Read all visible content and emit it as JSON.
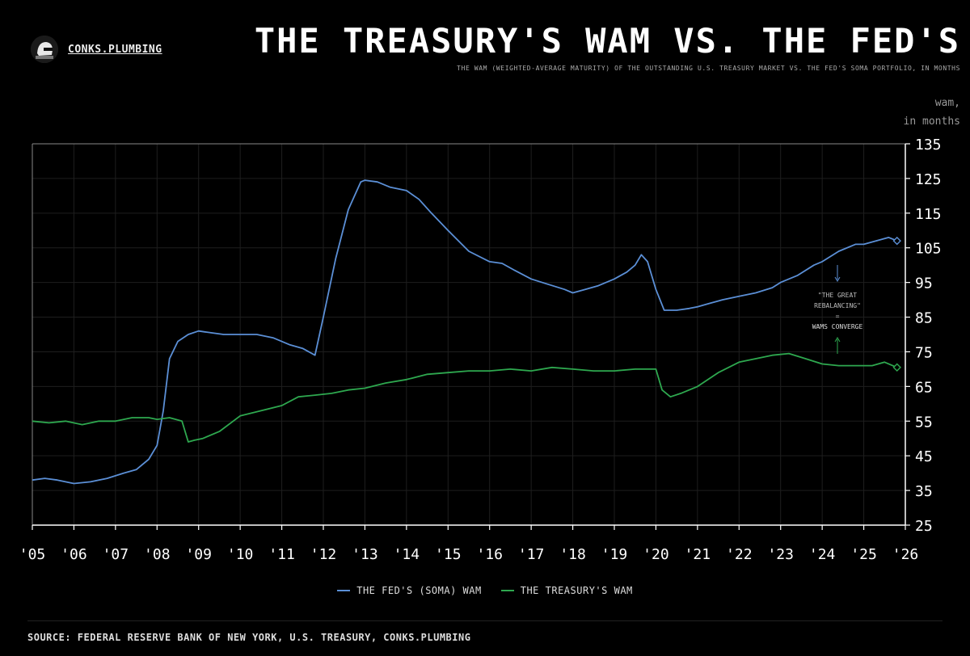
{
  "brand": {
    "name": "CONKS.PLUMBING"
  },
  "header": {
    "title": "THE TREASURY'S WAM VS. THE FED'S",
    "subtitle": "THE WAM (WEIGHTED-AVERAGE MATURITY) OF THE OUTSTANDING U.S. TREASURY MARKET VS. THE FED'S SOMA PORTFOLIO, IN MONTHS",
    "unit_line1": "wam,",
    "unit_line2": "in months"
  },
  "annotation": {
    "line1": "\"THE GREAT",
    "line2": "REBALANCING\"",
    "line3": "=",
    "line4": "WAMS CONVERGE"
  },
  "footer": {
    "source": "SOURCE: FEDERAL RESERVE BANK OF NEW YORK, U.S. TREASURY, CONKS.PLUMBING"
  },
  "colors": {
    "fed": "#5b8fd6",
    "treasury": "#2ea84f",
    "axis": "#ffffff",
    "grid": "#1e1e1e"
  },
  "chart_data": {
    "type": "line",
    "title": "THE TREASURY'S WAM VS. THE FED'S",
    "ylabel": "wam, in months",
    "xlim": [
      2005,
      2026
    ],
    "ylim": [
      25,
      135
    ],
    "yticks": [
      25,
      35,
      45,
      55,
      65,
      75,
      85,
      95,
      105,
      115,
      125,
      135
    ],
    "xticks": [
      2005,
      2006,
      2007,
      2008,
      2009,
      2010,
      2011,
      2012,
      2013,
      2014,
      2015,
      2016,
      2017,
      2018,
      2019,
      2020,
      2021,
      2022,
      2023,
      2024,
      2025,
      2026
    ],
    "xtick_labels": [
      "'05",
      "'06",
      "'07",
      "'08",
      "'09",
      "'10",
      "'11",
      "'12",
      "'13",
      "'14",
      "'15",
      "'16",
      "'17",
      "'18",
      "'19",
      "'20",
      "'21",
      "'22",
      "'23",
      "'24",
      "'25",
      "'26"
    ],
    "grid": true,
    "legend_position": "bottom-center",
    "series": [
      {
        "name": "THE FED'S (SOMA) WAM",
        "x": [
          2005.0,
          2005.3,
          2005.6,
          2006.0,
          2006.4,
          2006.8,
          2007.2,
          2007.5,
          2007.8,
          2008.0,
          2008.15,
          2008.3,
          2008.5,
          2008.75,
          2009.0,
          2009.3,
          2009.6,
          2010.0,
          2010.4,
          2010.8,
          2011.2,
          2011.5,
          2011.8,
          2012.0,
          2012.3,
          2012.6,
          2012.9,
          2013.0,
          2013.3,
          2013.6,
          2014.0,
          2014.3,
          2014.6,
          2015.0,
          2015.5,
          2016.0,
          2016.3,
          2016.6,
          2017.0,
          2017.4,
          2017.8,
          2018.0,
          2018.3,
          2018.6,
          2019.0,
          2019.3,
          2019.5,
          2019.65,
          2019.8,
          2020.0,
          2020.2,
          2020.5,
          2020.8,
          2021.0,
          2021.3,
          2021.6,
          2022.0,
          2022.4,
          2022.8,
          2023.0,
          2023.4,
          2023.8,
          2024.0,
          2024.4,
          2024.8,
          2025.0,
          2025.3,
          2025.6,
          2025.8
        ],
        "values": [
          38,
          38.5,
          38,
          37,
          37.5,
          38.5,
          40,
          41,
          44,
          48,
          58,
          73,
          78,
          80,
          81,
          80.5,
          80,
          80,
          80,
          79,
          77,
          76,
          74,
          85,
          102,
          116,
          124,
          124.5,
          124,
          122.5,
          121.5,
          119,
          115,
          110,
          104,
          101,
          100.5,
          98.5,
          96,
          94.5,
          93,
          92,
          93,
          94,
          96,
          98,
          100,
          103,
          101,
          93,
          87,
          87,
          87.5,
          88,
          89,
          90,
          91,
          92,
          93.5,
          95,
          97,
          100,
          101,
          104,
          106,
          106,
          107,
          108,
          107
        ]
      },
      {
        "name": "THE TREASURY'S WAM",
        "x": [
          2005.0,
          2005.4,
          2005.8,
          2006.2,
          2006.6,
          2007.0,
          2007.4,
          2007.8,
          2008.0,
          2008.3,
          2008.6,
          2008.75,
          2008.9,
          2009.1,
          2009.5,
          2010.0,
          2010.5,
          2011.0,
          2011.4,
          2011.8,
          2012.2,
          2012.6,
          2013.0,
          2013.5,
          2014.0,
          2014.5,
          2015.0,
          2015.5,
          2016.0,
          2016.5,
          2017.0,
          2017.5,
          2018.0,
          2018.5,
          2019.0,
          2019.5,
          2020.0,
          2020.15,
          2020.35,
          2020.6,
          2021.0,
          2021.5,
          2022.0,
          2022.4,
          2022.8,
          2023.2,
          2023.6,
          2024.0,
          2024.4,
          2024.8,
          2025.2,
          2025.5,
          2025.8
        ],
        "values": [
          55,
          54.5,
          55,
          54,
          55,
          55,
          56,
          56,
          55.5,
          56,
          55,
          49,
          49.5,
          50,
          52,
          56.5,
          58,
          59.5,
          62,
          62.5,
          63,
          64,
          64.5,
          66,
          67,
          68.5,
          69,
          69.5,
          69.5,
          70,
          69.5,
          70.5,
          70,
          69.5,
          69.5,
          70,
          70,
          64,
          62,
          63,
          65,
          69,
          72,
          73,
          74,
          74.5,
          73,
          71.5,
          71,
          71,
          71,
          72,
          70.5
        ]
      }
    ]
  },
  "legend": {
    "fed_label": "THE FED'S (SOMA) WAM",
    "treasury_label": "THE TREASURY'S WAM"
  }
}
